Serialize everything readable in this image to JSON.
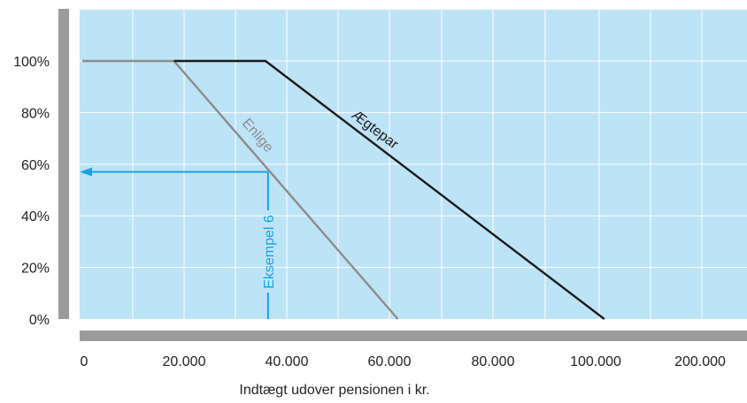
{
  "chart_data": {
    "type": "line",
    "title": "",
    "xlabel": "Indtægt udover pensionen i kr.",
    "ylabel": "",
    "x_tick_labels": [
      "0",
      "20.000",
      "40.000",
      "60.000",
      "80.000",
      "100.000",
      "200.000"
    ],
    "y_tick_labels": [
      "0%",
      "20%",
      "40%",
      "60%",
      "80%",
      "100%"
    ],
    "ylim": [
      0,
      120
    ],
    "xlim": [
      0,
      129000
    ],
    "grid": true,
    "legend": "none",
    "series": [
      {
        "name": "Enlige",
        "color": "#8c8c8c",
        "points": [
          [
            0,
            100
          ],
          [
            18000,
            100
          ],
          [
            62000,
            0
          ]
        ]
      },
      {
        "name": "Ægtepar",
        "color": "#1a1a1a",
        "points": [
          [
            18000,
            100
          ],
          [
            36000,
            100
          ],
          [
            105000,
            0
          ]
        ]
      }
    ],
    "annotation": {
      "label": "Eksempel 6",
      "color": "#1aa3e0",
      "x": 36500,
      "y": 57
    },
    "colors": {
      "plot_background": "#bde3f7",
      "axis_bars": "#9b9b9b",
      "grid": "#ffffff"
    }
  }
}
